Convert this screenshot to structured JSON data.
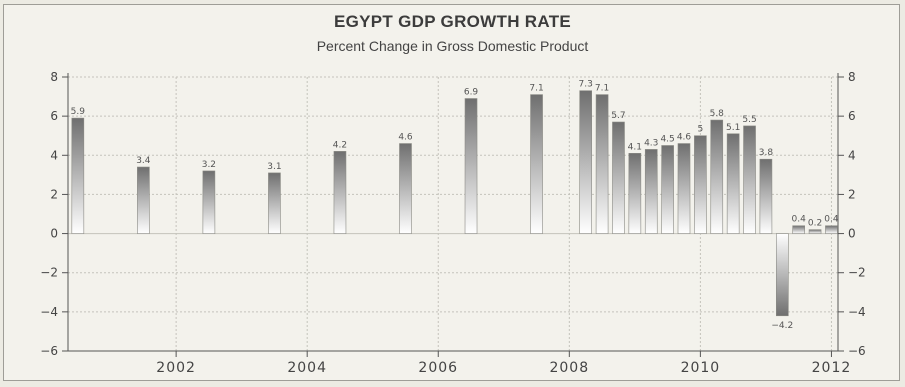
{
  "chart_data": {
    "type": "bar",
    "title": "EGYPT GDP GROWTH RATE",
    "subtitle": "Percent Change in Gross Domestic Product",
    "xlabel": "",
    "ylabel": "",
    "ylim": [
      -6,
      8
    ],
    "yticks": [
      8,
      6,
      4,
      2,
      0,
      -2,
      -4,
      -6
    ],
    "ytick_labels": [
      "8",
      "6",
      "4",
      "2",
      "0",
      "−2",
      "−4",
      "−6"
    ],
    "xlim": [
      2000.35,
      2012.1
    ],
    "xticks": [
      2002,
      2004,
      2006,
      2008,
      2010,
      2012
    ],
    "xtick_labels": [
      "2002",
      "2004",
      "2006",
      "2008",
      "2010",
      "2012"
    ],
    "grid": true,
    "x": [
      2000.5,
      2001.5,
      2002.5,
      2003.5,
      2004.5,
      2005.5,
      2006.5,
      2007.5,
      2008.25,
      2008.5,
      2008.75,
      2009.0,
      2009.25,
      2009.5,
      2009.75,
      2010.0,
      2010.25,
      2010.5,
      2010.75,
      2011.0,
      2011.25,
      2011.5,
      2011.75,
      2012.0
    ],
    "values": [
      5.9,
      3.4,
      3.2,
      3.1,
      4.2,
      4.6,
      6.9,
      7.1,
      7.3,
      7.1,
      5.7,
      4.1,
      4.3,
      4.5,
      4.6,
      5,
      5.8,
      5.1,
      5.5,
      3.8,
      -4.2,
      0.4,
      0.2,
      0.4
    ],
    "labels": [
      "5.9",
      "3.4",
      "3.2",
      "3.1",
      "4.2",
      "4.6",
      "6.9",
      "7.1",
      "7.3",
      "7.1",
      "5.7",
      "4.1",
      "4.3",
      "4.5",
      "4.6",
      "5",
      "5.8",
      "5.1",
      "5.5",
      "3.8",
      "−4.2",
      "0.4",
      "0.2",
      "0.4"
    ],
    "colors": {
      "bar_top": "#6f6f6f",
      "bar_bottom": "#ffffff",
      "grid": "#c4c3bb",
      "text": "#444444"
    }
  }
}
